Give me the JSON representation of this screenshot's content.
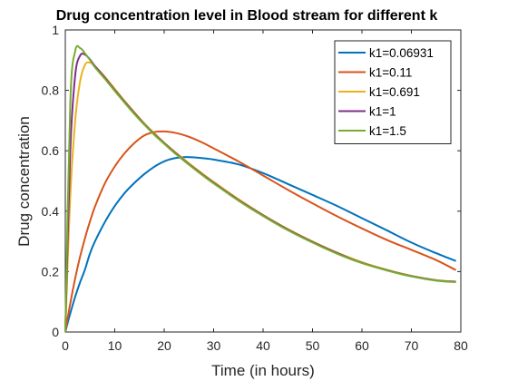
{
  "chart_data": {
    "type": "line",
    "title": "Drug concentration level in Blood stream for different k",
    "xlabel": "Time (in hours)",
    "ylabel": "Drug concentration",
    "xlim": [
      0,
      80
    ],
    "ylim": [
      0,
      1
    ],
    "xticks": [
      "0",
      "10",
      "20",
      "30",
      "40",
      "50",
      "60",
      "70",
      "80"
    ],
    "yticks": [
      "0",
      "0.2",
      "0.4",
      "0.6",
      "0.8",
      "1"
    ],
    "grid": false,
    "legend_position": "top-right",
    "colors": [
      "#0072bd",
      "#d95319",
      "#edb120",
      "#7e2f8e",
      "#77ac30"
    ],
    "x": [
      0,
      1,
      2,
      3,
      4,
      5,
      6,
      8,
      10,
      12,
      14,
      16,
      18,
      20,
      22,
      24,
      26,
      28,
      30,
      35,
      40,
      45,
      50,
      55,
      60,
      65,
      70,
      75,
      79
    ],
    "series": [
      {
        "name": "k1=0.06931",
        "values": [
          0,
          0.062,
          0.117,
          0.165,
          0.208,
          0.261,
          0.3,
          0.364,
          0.417,
          0.46,
          0.494,
          0.523,
          0.547,
          0.565,
          0.575,
          0.579,
          0.578,
          0.575,
          0.571,
          0.555,
          0.526,
          0.49,
          0.454,
          0.417,
          0.377,
          0.337,
          0.296,
          0.261,
          0.235
        ]
      },
      {
        "name": "k1=0.11",
        "values": [
          0,
          0.095,
          0.178,
          0.25,
          0.312,
          0.367,
          0.415,
          0.492,
          0.548,
          0.592,
          0.626,
          0.651,
          0.662,
          0.664,
          0.66,
          0.652,
          0.64,
          0.625,
          0.608,
          0.565,
          0.518,
          0.471,
          0.426,
          0.383,
          0.343,
          0.305,
          0.272,
          0.238,
          0.205
        ]
      },
      {
        "name": "k1=0.691",
        "values": [
          0,
          0.45,
          0.7,
          0.83,
          0.885,
          0.892,
          0.88,
          0.845,
          0.805,
          0.765,
          0.727,
          0.69,
          0.658,
          0.627,
          0.599,
          0.572,
          0.546,
          0.521,
          0.497,
          0.44,
          0.388,
          0.341,
          0.3,
          0.263,
          0.231,
          0.206,
          0.186,
          0.172,
          0.167
        ]
      },
      {
        "name": "k1=1",
        "values": [
          0,
          0.6,
          0.85,
          0.915,
          0.918,
          0.902,
          0.88,
          0.842,
          0.801,
          0.762,
          0.724,
          0.688,
          0.655,
          0.625,
          0.596,
          0.569,
          0.543,
          0.518,
          0.494,
          0.437,
          0.386,
          0.339,
          0.298,
          0.261,
          0.229,
          0.205,
          0.185,
          0.171,
          0.166
        ]
      },
      {
        "name": "k1=1.5",
        "values": [
          0,
          0.76,
          0.93,
          0.94,
          0.922,
          0.9,
          0.876,
          0.838,
          0.798,
          0.759,
          0.721,
          0.686,
          0.653,
          0.623,
          0.594,
          0.567,
          0.541,
          0.516,
          0.492,
          0.435,
          0.384,
          0.337,
          0.296,
          0.259,
          0.228,
          0.204,
          0.184,
          0.17,
          0.165
        ]
      }
    ]
  }
}
